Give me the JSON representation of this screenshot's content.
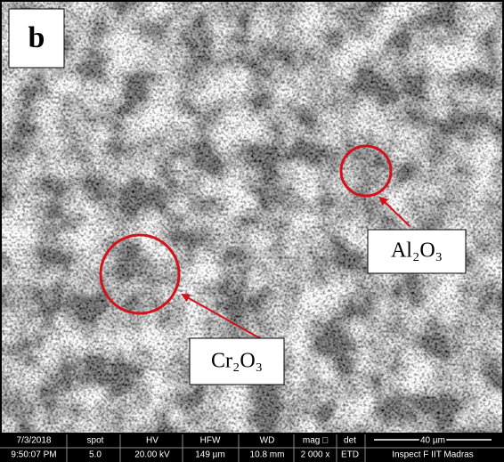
{
  "panel_label": "b",
  "annotations": [
    {
      "label": "Al₂O₃"
    },
    {
      "label": "Cr₂O₃"
    }
  ],
  "info_bar": {
    "columns": [
      {
        "header": "7/3/2018",
        "value": "9:50:07 PM"
      },
      {
        "header": "spot",
        "value": "5.0"
      },
      {
        "header": "HV",
        "value": "20.00 kV"
      },
      {
        "header": "HFW",
        "value": "149 µm"
      },
      {
        "header": "WD",
        "value": "10.8 mm"
      },
      {
        "header": "mag □",
        "value": "2 000 x"
      },
      {
        "header": "det",
        "value": "ETD"
      }
    ],
    "scale_bar": "40 µm",
    "instrument": "Inspect F IIT Madras"
  }
}
